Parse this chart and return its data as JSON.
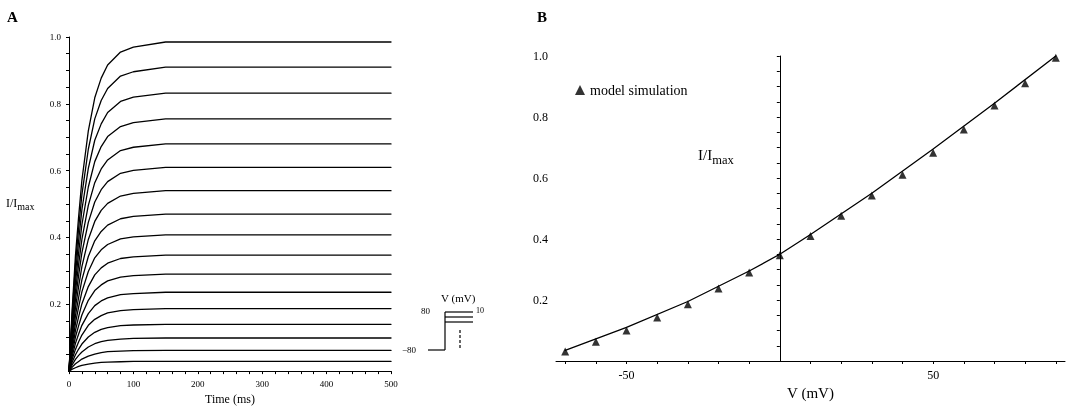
{
  "chart_data": [
    {
      "type": "line",
      "title": "A",
      "xlabel": "Time (ms)",
      "ylabel": "I/I$_{max}$",
      "x": [
        0,
        5,
        10,
        15,
        20,
        30,
        40,
        50,
        60,
        80,
        100,
        150,
        500
      ],
      "xlim": [
        0,
        500
      ],
      "ylim": [
        0,
        1
      ],
      "xticks": [
        0,
        {
          "value": 20,
          "label": null
        },
        {
          "value": 40,
          "label": null
        },
        {
          "value": 60,
          "label": null
        },
        {
          "value": 80,
          "label": null
        },
        100,
        {
          "value": 120,
          "label": null
        },
        {
          "value": 140,
          "label": null
        },
        {
          "value": 160,
          "label": null
        },
        {
          "value": 180,
          "label": null
        },
        200,
        {
          "value": 220,
          "label": null
        },
        {
          "value": 240,
          "label": null
        },
        {
          "value": 260,
          "label": null
        },
        {
          "value": 280,
          "label": null
        },
        300,
        {
          "value": 320,
          "label": null
        },
        {
          "value": 340,
          "label": null
        },
        {
          "value": 360,
          "label": null
        },
        {
          "value": 380,
          "label": null
        },
        400,
        {
          "value": 420,
          "label": null
        },
        {
          "value": 440,
          "label": null
        },
        {
          "value": 460,
          "label": null
        },
        {
          "value": 480,
          "label": null
        },
        500
      ],
      "yticks": [
        {
          "value": 0.05,
          "label": null
        },
        {
          "value": 0.1,
          "label": null
        },
        {
          "value": 0.15,
          "label": null
        },
        0.2,
        {
          "value": 0.25,
          "label": null
        },
        {
          "value": 0.3,
          "label": null
        },
        {
          "value": 0.35,
          "label": null
        },
        0.4,
        {
          "value": 0.45,
          "label": null
        },
        {
          "value": 0.5,
          "label": null
        },
        {
          "value": 0.55,
          "label": null
        },
        0.6,
        {
          "value": 0.65,
          "label": null
        },
        {
          "value": 0.7,
          "label": null
        },
        {
          "value": 0.75,
          "label": null
        },
        0.8,
        {
          "value": 0.85,
          "label": null
        },
        {
          "value": 0.9,
          "label": null
        },
        {
          "value": 0.95,
          "label": null
        },
        {
          "value": 1,
          "label": "1.0"
        }
      ],
      "annotations": [
        "V (mV)",
        "80",
        "−80",
        "10"
      ],
      "series": [
        {
          "color": "#000000",
          "values": [
            0,
            0.187,
            0.345,
            0.463,
            0.571,
            0.719,
            0.818,
            0.877,
            0.916,
            0.955,
            0.97,
            0.985,
            0.985
          ]
        },
        {
          "color": "#000000",
          "values": [
            0,
            0.173,
            0.319,
            0.428,
            0.528,
            0.664,
            0.755,
            0.81,
            0.846,
            0.883,
            0.896,
            0.91,
            0.91
          ]
        },
        {
          "color": "#000000",
          "values": [
            0,
            0.158,
            0.291,
            0.391,
            0.483,
            0.607,
            0.691,
            0.74,
            0.774,
            0.807,
            0.82,
            0.832,
            0.832
          ]
        },
        {
          "color": "#000000",
          "values": [
            0,
            0.143,
            0.264,
            0.355,
            0.438,
            0.551,
            0.627,
            0.672,
            0.702,
            0.732,
            0.744,
            0.755,
            0.755
          ]
        },
        {
          "color": "#000000",
          "values": [
            0,
            0.129,
            0.238,
            0.32,
            0.394,
            0.496,
            0.564,
            0.605,
            0.632,
            0.66,
            0.67,
            0.68,
            0.68
          ]
        },
        {
          "color": "#000000",
          "values": [
            0,
            0.116,
            0.214,
            0.287,
            0.354,
            0.445,
            0.506,
            0.543,
            0.567,
            0.592,
            0.601,
            0.61,
            0.61
          ]
        },
        {
          "color": "#000000",
          "values": [
            0,
            0.103,
            0.189,
            0.254,
            0.313,
            0.394,
            0.448,
            0.481,
            0.502,
            0.524,
            0.532,
            0.54,
            0.54
          ]
        },
        {
          "color": "#000000",
          "values": [
            0,
            0.089,
            0.165,
            0.221,
            0.273,
            0.343,
            0.39,
            0.418,
            0.437,
            0.456,
            0.463,
            0.47,
            0.47
          ]
        },
        {
          "color": "#000000",
          "values": [
            0,
            0.078,
            0.143,
            0.192,
            0.237,
            0.298,
            0.339,
            0.363,
            0.379,
            0.396,
            0.402,
            0.408,
            0.408
          ]
        },
        {
          "color": "#000000",
          "values": [
            0,
            0.066,
            0.121,
            0.163,
            0.201,
            0.253,
            0.288,
            0.309,
            0.323,
            0.337,
            0.342,
            0.347,
            0.347
          ]
        },
        {
          "color": "#000000",
          "values": [
            0,
            0.055,
            0.102,
            0.136,
            0.168,
            0.212,
            0.241,
            0.258,
            0.27,
            0.281,
            0.286,
            0.29,
            0.29
          ]
        },
        {
          "color": "#000000",
          "values": [
            0,
            0.045,
            0.083,
            0.111,
            0.137,
            0.172,
            0.196,
            0.21,
            0.219,
            0.229,
            0.232,
            0.236,
            0.236
          ]
        },
        {
          "color": "#000000",
          "values": [
            0,
            0.036,
            0.065,
            0.088,
            0.108,
            0.137,
            0.155,
            0.166,
            0.174,
            0.181,
            0.184,
            0.187,
            0.187
          ]
        },
        {
          "color": "#000000",
          "values": [
            0,
            0.027,
            0.049,
            0.066,
            0.081,
            0.102,
            0.116,
            0.125,
            0.13,
            0.136,
            0.138,
            0.14,
            0.14
          ]
        },
        {
          "color": "#000000",
          "values": [
            0,
            0.019,
            0.035,
            0.047,
            0.057,
            0.072,
            0.082,
            0.088,
            0.092,
            0.096,
            0.098,
            0.099,
            0.099
          ]
        },
        {
          "color": "#000000",
          "values": [
            0,
            0.012,
            0.022,
            0.029,
            0.036,
            0.045,
            0.051,
            0.055,
            0.058,
            0.06,
            0.061,
            0.062,
            0.062
          ]
        },
        {
          "color": "#000000",
          "values": [
            0,
            0.006,
            0.01,
            0.014,
            0.017,
            0.021,
            0.024,
            0.026,
            0.027,
            0.028,
            0.029,
            0.029,
            0.029
          ]
        }
      ]
    },
    {
      "type": "scatter",
      "title": "B",
      "xlabel": "V (mV)",
      "ylabel": "I/I$_{max}$",
      "legend": "top left",
      "xlim": [
        -73,
        93
      ],
      "ylim": [
        0,
        1
      ],
      "xticks": [
        {
          "value": -70,
          "label": null
        },
        {
          "value": -60,
          "label": null
        },
        -50,
        {
          "value": -40,
          "label": null
        },
        {
          "value": -30,
          "label": null
        },
        {
          "value": -20,
          "label": null
        },
        {
          "value": -10,
          "label": null
        },
        {
          "value": 10,
          "label": null
        },
        {
          "value": 20,
          "label": null
        },
        {
          "value": 30,
          "label": null
        },
        {
          "value": 40,
          "label": null
        },
        50,
        {
          "value": 60,
          "label": null
        },
        {
          "value": 70,
          "label": null
        },
        {
          "value": 80,
          "label": null
        },
        {
          "value": 90,
          "label": null
        }
      ],
      "yticks": [
        {
          "value": 0.05,
          "label": null
        },
        {
          "value": 0.1,
          "label": null
        },
        {
          "value": 0.15,
          "label": null
        },
        0.2,
        {
          "value": 0.25,
          "label": null
        },
        {
          "value": 0.3,
          "label": null
        },
        {
          "value": 0.35,
          "label": null
        },
        0.4,
        {
          "value": 0.45,
          "label": null
        },
        {
          "value": 0.5,
          "label": null
        },
        {
          "value": 0.55,
          "label": null
        },
        0.6,
        {
          "value": 0.65,
          "label": null
        },
        {
          "value": 0.7,
          "label": null
        },
        {
          "value": 0.75,
          "label": null
        },
        0.8,
        {
          "value": 0.85,
          "label": null
        },
        {
          "value": 0.9,
          "label": null
        },
        {
          "value": 0.95,
          "label": null
        },
        {
          "value": 1,
          "label": "1.0"
        }
      ],
      "series": [
        {
          "type": "line",
          "color": "#000000",
          "x": [
            -70,
            -50,
            -30,
            -10,
            0,
            10,
            30,
            50,
            70,
            90
          ],
          "values": [
            0.035,
            0.11,
            0.195,
            0.295,
            0.35,
            0.415,
            0.55,
            0.695,
            0.845,
            1.0
          ]
        },
        {
          "name": "model simulation",
          "color": "#000000",
          "marker": "triangle",
          "x": [
            -70,
            -60,
            -50,
            -40,
            -30,
            -20,
            -10,
            0,
            10,
            20,
            30,
            40,
            50,
            60,
            70,
            80,
            90
          ],
          "values": [
            0.031,
            0.063,
            0.1,
            0.143,
            0.186,
            0.238,
            0.29,
            0.347,
            0.41,
            0.476,
            0.543,
            0.611,
            0.683,
            0.759,
            0.838,
            0.911,
            0.994
          ]
        }
      ]
    }
  ]
}
